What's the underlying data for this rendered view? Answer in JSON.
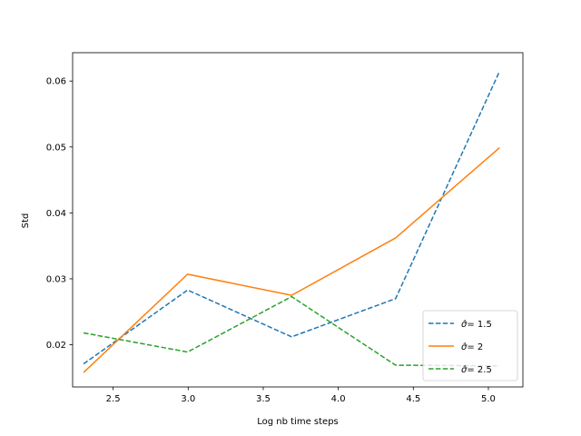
{
  "chart_data": {
    "type": "line",
    "title": "",
    "xlabel": "Log nb time  steps",
    "ylabel": "Std",
    "xlim": [
      2.23,
      5.23
    ],
    "ylim": [
      0.0136,
      0.0643
    ],
    "xticks": [
      2.5,
      3.0,
      3.5,
      4.0,
      4.5,
      5.0
    ],
    "xtick_labels": [
      "2.5",
      "3.0",
      "3.5",
      "4.0",
      "4.5",
      "5.0"
    ],
    "yticks": [
      0.02,
      0.03,
      0.04,
      0.05,
      0.06
    ],
    "ytick_labels": [
      "0.02",
      "0.03",
      "0.04",
      "0.05",
      "0.06"
    ],
    "x": [
      2.303,
      2.996,
      3.689,
      4.382,
      5.075
    ],
    "grid": false,
    "legend_position": "lower-right",
    "series": [
      {
        "name": "σ̂ = 1.5",
        "legend_label": "1.5",
        "values": [
          0.0171,
          0.0283,
          0.0212,
          0.027,
          0.0615
        ],
        "color": "#1f77b4",
        "dashed": true
      },
      {
        "name": "σ̂ = 2",
        "legend_label": "2",
        "values": [
          0.0158,
          0.0307,
          0.0275,
          0.0362,
          0.0499
        ],
        "color": "#ff7f0e",
        "dashed": false
      },
      {
        "name": "σ̂ = 2.5",
        "legend_label": "2.5",
        "values": [
          0.0218,
          0.0189,
          0.0273,
          0.0169,
          0.0168
        ],
        "color": "#2ca02c",
        "dashed": true
      }
    ]
  }
}
